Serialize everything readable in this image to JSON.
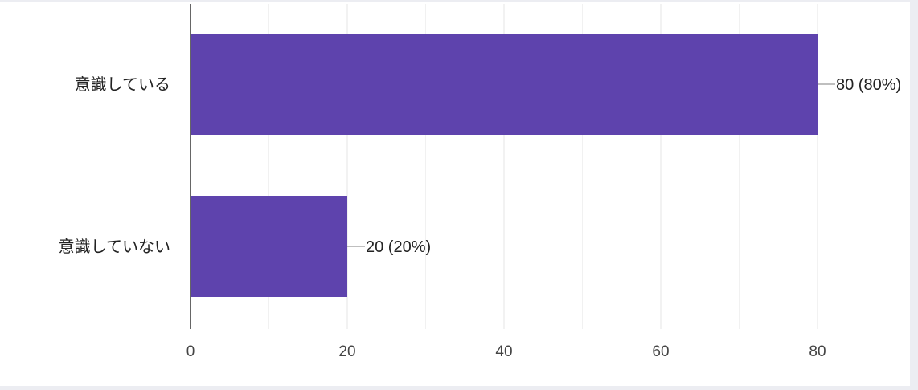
{
  "chart_data": {
    "type": "bar",
    "orientation": "horizontal",
    "categories": [
      "意識している",
      "意識していない"
    ],
    "values": [
      80,
      20
    ],
    "value_labels": [
      "80 (80%)",
      "20 (20%)"
    ],
    "x_ticks": [
      "0",
      "20",
      "40",
      "60",
      "80"
    ],
    "xlim": [
      0,
      80
    ],
    "grid": true,
    "bar_color": "#5e43ad",
    "grid_color": "#e6e6e6",
    "axis_color": "#333333",
    "leader_color": "#999999"
  }
}
